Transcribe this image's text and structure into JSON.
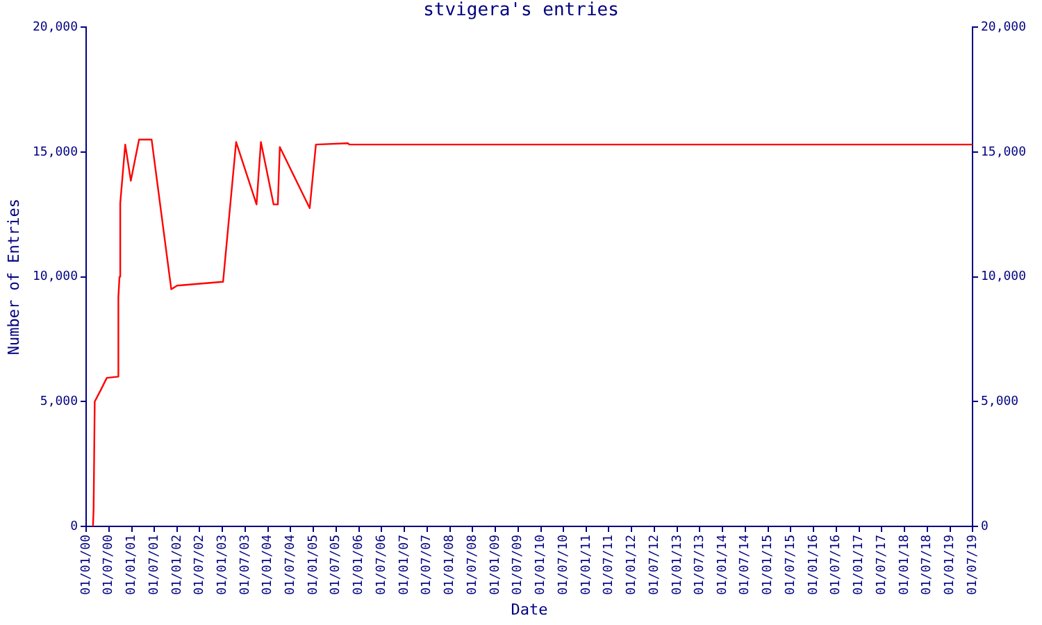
{
  "chart_data": {
    "type": "line",
    "title": "stvigera's entries",
    "xlabel": "Date",
    "ylabel": "Number of Entries",
    "x": [
      "2000-02-25",
      "2000-03-01",
      "2000-03-10",
      "2000-05-01",
      "2000-06-15",
      "2000-09-15",
      "2000-09-16",
      "2000-09-25",
      "2000-10-01",
      "2000-11-10",
      "2000-12-25",
      "2001-03-01",
      "2001-06-10",
      "2001-11-15",
      "2002-01-01",
      "2003-01-05",
      "2003-04-20",
      "2003-10-01",
      "2003-11-05",
      "2004-02-15",
      "2004-03-20",
      "2004-04-05",
      "2004-12-01",
      "2005-01-20",
      "2005-10-05",
      "2005-10-15",
      "2019-07-01"
    ],
    "series": [
      {
        "color": "#ff0000",
        "values": [
          0,
          700,
          5000,
          5500,
          5950,
          6000,
          9200,
          10000,
          12950,
          15300,
          13850,
          15500,
          15500,
          9500,
          9650,
          9800,
          15400,
          12900,
          15400,
          12900,
          12900,
          15200,
          12750,
          15300,
          15350,
          15300,
          15300
        ]
      }
    ],
    "xlim": [
      "2000-01-01",
      "2019-07-01"
    ],
    "xticks": [
      {
        "value": "2000-01-01",
        "label": "01/01/00"
      },
      {
        "value": "2000-07-01",
        "label": "01/07/00"
      },
      {
        "value": "2001-01-01",
        "label": "01/01/01"
      },
      {
        "value": "2001-07-01",
        "label": "01/07/01"
      },
      {
        "value": "2002-01-01",
        "label": "01/01/02"
      },
      {
        "value": "2002-07-01",
        "label": "01/07/02"
      },
      {
        "value": "2003-01-01",
        "label": "01/01/03"
      },
      {
        "value": "2003-07-01",
        "label": "01/07/03"
      },
      {
        "value": "2004-01-01",
        "label": "01/01/04"
      },
      {
        "value": "2004-07-01",
        "label": "01/07/04"
      },
      {
        "value": "2005-01-01",
        "label": "01/01/05"
      },
      {
        "value": "2005-07-01",
        "label": "01/07/05"
      },
      {
        "value": "2006-01-01",
        "label": "01/01/06"
      },
      {
        "value": "2006-07-01",
        "label": "01/07/06"
      },
      {
        "value": "2007-01-01",
        "label": "01/01/07"
      },
      {
        "value": "2007-07-01",
        "label": "01/07/07"
      },
      {
        "value": "2008-01-01",
        "label": "01/01/08"
      },
      {
        "value": "2008-07-01",
        "label": "01/07/08"
      },
      {
        "value": "2009-01-01",
        "label": "01/01/09"
      },
      {
        "value": "2009-07-01",
        "label": "01/07/09"
      },
      {
        "value": "2010-01-01",
        "label": "01/01/10"
      },
      {
        "value": "2010-07-01",
        "label": "01/07/10"
      },
      {
        "value": "2011-01-01",
        "label": "01/01/11"
      },
      {
        "value": "2011-07-01",
        "label": "01/07/11"
      },
      {
        "value": "2012-01-01",
        "label": "01/01/12"
      },
      {
        "value": "2012-07-01",
        "label": "01/07/12"
      },
      {
        "value": "2013-01-01",
        "label": "01/01/13"
      },
      {
        "value": "2013-07-01",
        "label": "01/07/13"
      },
      {
        "value": "2014-01-01",
        "label": "01/01/14"
      },
      {
        "value": "2014-07-01",
        "label": "01/07/14"
      },
      {
        "value": "2015-01-01",
        "label": "01/01/15"
      },
      {
        "value": "2015-07-01",
        "label": "01/07/15"
      },
      {
        "value": "2016-01-01",
        "label": "01/01/16"
      },
      {
        "value": "2016-07-01",
        "label": "01/07/16"
      },
      {
        "value": "2017-01-01",
        "label": "01/01/17"
      },
      {
        "value": "2017-07-01",
        "label": "01/07/17"
      },
      {
        "value": "2018-01-01",
        "label": "01/01/18"
      },
      {
        "value": "2018-07-01",
        "label": "01/07/18"
      },
      {
        "value": "2019-01-01",
        "label": "01/01/19"
      },
      {
        "value": "2019-07-01",
        "label": "01/07/19"
      }
    ],
    "ylim": [
      0,
      20000
    ],
    "yticks": [
      0,
      {
        "value": 5000,
        "label": "5,000"
      },
      {
        "value": 10000,
        "label": "10,000"
      },
      {
        "value": 15000,
        "label": "15,000"
      },
      {
        "value": 20000,
        "label": "20,000"
      }
    ],
    "y2lim": [
      0,
      20000
    ],
    "y2ticks": [
      0,
      {
        "value": 5000,
        "label": "5,000"
      },
      {
        "value": 10000,
        "label": "10,000"
      },
      {
        "value": 15000,
        "label": "15,000"
      },
      {
        "value": 20000,
        "label": "20,000"
      }
    ],
    "grid": false,
    "legend": false,
    "marker": "none",
    "line_style": "solid"
  }
}
